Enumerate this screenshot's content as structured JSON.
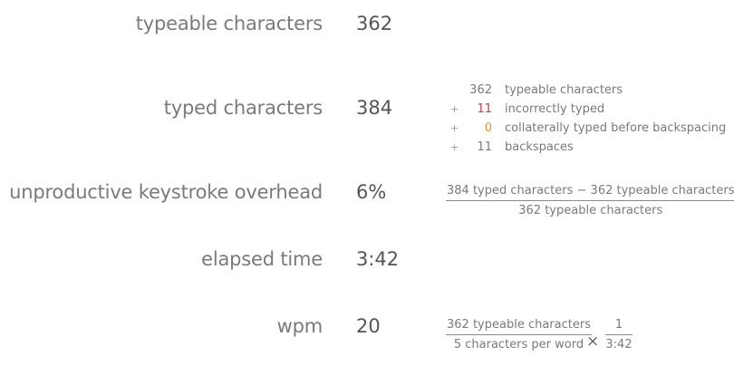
{
  "rows": {
    "typeable": {
      "label": "typeable characters",
      "value": "362"
    },
    "typed": {
      "label": "typed characters",
      "value": "384"
    },
    "overhead": {
      "label": "unproductive keystroke overhead",
      "value": "6%"
    },
    "elapsed": {
      "label": "elapsed time",
      "value": "3:42"
    },
    "wpm": {
      "label": "wpm",
      "value": "20"
    }
  },
  "breakdown": [
    {
      "op": "",
      "num": "362",
      "text": "typeable characters",
      "color": "#7a7a7a"
    },
    {
      "op": "+",
      "num": "11",
      "text": "incorrectly typed",
      "color": "#cc3b3b"
    },
    {
      "op": "+",
      "num": "0",
      "text": "collaterally typed before backspacing",
      "color": "#e8952c"
    },
    {
      "op": "+",
      "num": "11",
      "text": "backspaces",
      "color": "#7a7a7a"
    }
  ],
  "overhead_formula": {
    "numerator": "384 typed characters − 362 typeable characters",
    "denominator": "362 typeable characters"
  },
  "wpm_formula": {
    "frac1_numerator": "362 typeable characters",
    "frac1_denominator": "5 characters per word",
    "operator": "×",
    "frac2_numerator": "1",
    "frac2_denominator": "3:42"
  }
}
